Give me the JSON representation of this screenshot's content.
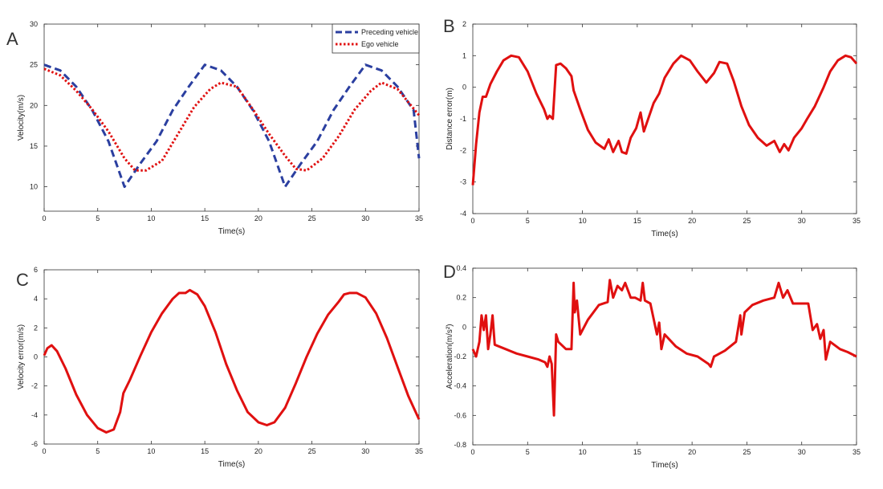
{
  "chart_data": [
    {
      "panel": "A",
      "type": "line",
      "xlabel": "Time(s)",
      "ylabel": "Velocity(m/s)",
      "xlim": [
        0,
        35
      ],
      "ylim": [
        7,
        30
      ],
      "xticks": [
        0,
        5,
        10,
        15,
        20,
        25,
        30,
        35
      ],
      "yticks": [
        10,
        15,
        20,
        25,
        30
      ],
      "legend": "top-right",
      "series": [
        {
          "name": "Preceding vehicle",
          "color": "#2b3fa0",
          "style": "dashed",
          "x": [
            0,
            1.5,
            3,
            4.5,
            6,
            7.5,
            9,
            10.5,
            12,
            13.5,
            15,
            16.5,
            18,
            19.5,
            21,
            22.5,
            24,
            25.5,
            27,
            28.5,
            30,
            31.5,
            33,
            34.5,
            35
          ],
          "y": [
            25,
            24.3,
            22.3,
            19.4,
            15.6,
            10,
            12.9,
            15.6,
            19.4,
            22.3,
            25,
            24.3,
            22.3,
            19.4,
            15.6,
            10,
            12.9,
            15.6,
            19.4,
            22.3,
            25,
            24.3,
            22.3,
            19.4,
            13.5
          ]
        },
        {
          "name": "Ego vehicle",
          "color": "#e01010",
          "style": "dotted",
          "x": [
            0,
            1.5,
            3,
            4.5,
            6,
            7.5,
            8.5,
            9.5,
            11,
            12.5,
            14,
            15.5,
            16.5,
            18,
            19.5,
            21,
            22.5,
            23.5,
            24.5,
            26,
            27.5,
            29,
            30.5,
            31.5,
            33,
            35
          ],
          "y": [
            24.5,
            23.7,
            21.8,
            19.5,
            16.8,
            13.5,
            12,
            12,
            13.2,
            16.5,
            19.8,
            22,
            22.8,
            22.3,
            19.5,
            16.5,
            13.8,
            12.2,
            12,
            13.5,
            16.2,
            19.5,
            21.8,
            22.8,
            22,
            18.8
          ]
        }
      ]
    },
    {
      "panel": "B",
      "type": "line",
      "xlabel": "Time(s)",
      "ylabel": "Distance error(m)",
      "xlim": [
        0,
        35
      ],
      "ylim": [
        -4,
        2
      ],
      "xticks": [
        0,
        5,
        10,
        15,
        20,
        25,
        30,
        35
      ],
      "yticks": [
        -4,
        -3,
        -2,
        -1,
        0,
        1,
        2
      ],
      "series": [
        {
          "color": "#e01010",
          "x": [
            0,
            0.3,
            0.6,
            0.9,
            1.2,
            1.6,
            2.2,
            2.8,
            3.5,
            4.2,
            5,
            5.8,
            6.5,
            6.8,
            7,
            7.3,
            7.6,
            8,
            8.5,
            9,
            9.2,
            9.8,
            10.5,
            11.2,
            12,
            12.4,
            12.8,
            13.3,
            13.6,
            14,
            14.4,
            14.9,
            15.3,
            15.6,
            16,
            16.5,
            17,
            17.5,
            18.3,
            19,
            19.8,
            20.5,
            21.3,
            22,
            22.5,
            23.2,
            23.8,
            24.5,
            25.2,
            26,
            26.8,
            27.5,
            28,
            28.4,
            28.8,
            29.3,
            30,
            30.5,
            31.2,
            32,
            32.6,
            33.3,
            34,
            34.5,
            35
          ],
          "y": [
            -3.1,
            -1.8,
            -0.8,
            -0.3,
            -0.3,
            0.1,
            0.5,
            0.85,
            1.0,
            0.95,
            0.5,
            -0.2,
            -0.7,
            -1.0,
            -0.9,
            -1.0,
            0.7,
            0.75,
            0.6,
            0.35,
            -0.1,
            -0.7,
            -1.35,
            -1.75,
            -1.95,
            -1.65,
            -2.05,
            -1.7,
            -2.05,
            -2.1,
            -1.6,
            -1.3,
            -0.8,
            -1.4,
            -1.0,
            -0.5,
            -0.2,
            0.3,
            0.75,
            1.0,
            0.85,
            0.5,
            0.15,
            0.45,
            0.8,
            0.75,
            0.2,
            -0.6,
            -1.2,
            -1.6,
            -1.85,
            -1.7,
            -2.05,
            -1.8,
            -2.0,
            -1.6,
            -1.3,
            -1.0,
            -0.6,
            0.0,
            0.5,
            0.85,
            1.0,
            0.95,
            0.75
          ]
        }
      ]
    },
    {
      "panel": "C",
      "type": "line",
      "xlabel": "Time(s)",
      "ylabel": "Velocity error(m/s)",
      "xlim": [
        0,
        35
      ],
      "ylim": [
        -6,
        6
      ],
      "xticks": [
        0,
        5,
        10,
        15,
        20,
        25,
        30,
        35
      ],
      "yticks": [
        -6,
        -4,
        -2,
        0,
        2,
        4,
        6
      ],
      "series": [
        {
          "color": "#e01010",
          "x": [
            0,
            0.3,
            0.7,
            1.2,
            2,
            3,
            4,
            5,
            5.8,
            6.5,
            7.1,
            7.4,
            8,
            9,
            10,
            11,
            12,
            12.6,
            13.2,
            13.6,
            14.3,
            15,
            16,
            17,
            18,
            19,
            20,
            20.8,
            21.5,
            22.5,
            23.5,
            24.5,
            25.5,
            26.5,
            27.5,
            28,
            28.5,
            29.2,
            30,
            31,
            32,
            33,
            34,
            35
          ],
          "y": [
            0.1,
            0.6,
            0.8,
            0.4,
            -0.8,
            -2.6,
            -4.0,
            -4.9,
            -5.2,
            -5.0,
            -3.8,
            -2.5,
            -1.6,
            0.1,
            1.7,
            3.0,
            4.0,
            4.4,
            4.4,
            4.6,
            4.3,
            3.5,
            1.7,
            -0.5,
            -2.3,
            -3.8,
            -4.5,
            -4.7,
            -4.5,
            -3.5,
            -1.8,
            0.0,
            1.6,
            2.9,
            3.8,
            4.3,
            4.4,
            4.4,
            4.1,
            3.0,
            1.3,
            -0.7,
            -2.7,
            -4.3
          ]
        }
      ]
    },
    {
      "panel": "D",
      "type": "line",
      "xlabel": "Time(s)",
      "ylabel": "Acceleration(m/s²)",
      "xlim": [
        0,
        35
      ],
      "ylim": [
        -0.8,
        0.4
      ],
      "xticks": [
        0,
        5,
        10,
        15,
        20,
        25,
        30,
        35
      ],
      "yticks": [
        -0.8,
        -0.6,
        -0.4,
        -0.2,
        0,
        0.2,
        0.4
      ],
      "series": [
        {
          "color": "#e01010",
          "x": [
            0,
            0.3,
            0.6,
            0.8,
            1.0,
            1.2,
            1.4,
            1.6,
            1.8,
            2.0,
            3,
            4,
            5,
            6,
            6.6,
            6.8,
            7.0,
            7.2,
            7.4,
            7.6,
            7.8,
            8.5,
            9,
            9.2,
            9.3,
            9.5,
            9.8,
            10.5,
            11.5,
            12.3,
            12.5,
            12.8,
            13.2,
            13.6,
            13.9,
            14.4,
            14.8,
            15.3,
            15.5,
            15.7,
            16.2,
            16.8,
            17.0,
            17.2,
            17.5,
            18.5,
            19.5,
            20.5,
            21.5,
            21.7,
            22,
            23,
            24,
            24.4,
            24.5,
            24.8,
            25.5,
            26.5,
            27.5,
            27.9,
            28.3,
            28.7,
            29.2,
            30,
            30.6,
            31,
            31.4,
            31.7,
            32.0,
            32.2,
            32.6,
            33.5,
            34.2,
            35
          ],
          "y": [
            -0.15,
            -0.2,
            -0.1,
            0.08,
            -0.02,
            0.08,
            -0.15,
            -0.05,
            0.08,
            -0.12,
            -0.15,
            -0.18,
            -0.2,
            -0.22,
            -0.24,
            -0.27,
            -0.2,
            -0.25,
            -0.6,
            -0.05,
            -0.1,
            -0.15,
            -0.15,
            0.3,
            0.1,
            0.18,
            -0.05,
            0.05,
            0.15,
            0.17,
            0.32,
            0.2,
            0.28,
            0.25,
            0.3,
            0.2,
            0.2,
            0.18,
            0.3,
            0.18,
            0.16,
            -0.05,
            0.03,
            -0.15,
            -0.05,
            -0.13,
            -0.18,
            -0.2,
            -0.25,
            -0.27,
            -0.2,
            -0.16,
            -0.1,
            0.08,
            -0.05,
            0.1,
            0.15,
            0.18,
            0.2,
            0.3,
            0.2,
            0.25,
            0.16,
            0.16,
            0.16,
            -0.02,
            0.02,
            -0.08,
            -0.02,
            -0.22,
            -0.1,
            -0.15,
            -0.17,
            -0.2
          ]
        }
      ]
    }
  ]
}
